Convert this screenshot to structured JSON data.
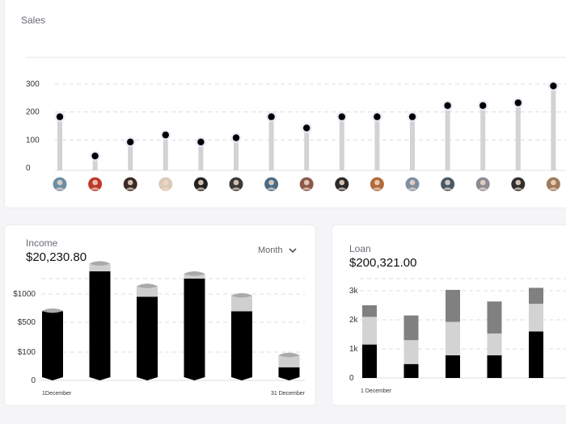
{
  "sales": {
    "title": "Sales"
  },
  "income": {
    "title": "Income",
    "amount": "$20,230.80",
    "period_select": "Month",
    "x_start_label": "1December",
    "x_end_label": "31 December"
  },
  "loan": {
    "title": "Loan",
    "amount": "$200,321.00",
    "x_start_label": "1 December"
  },
  "chart_data": [
    {
      "id": "sales",
      "type": "scatter",
      "title": "Sales",
      "y_ticks": [
        "300",
        "200",
        "100",
        "0"
      ],
      "ylim": [
        0,
        300
      ],
      "grid": true,
      "points": [
        {
          "value": 180,
          "avatar": "avatar-1",
          "color": "#6b8fa6"
        },
        {
          "value": 40,
          "avatar": "avatar-2",
          "color": "#c0392b"
        },
        {
          "value": 90,
          "avatar": "avatar-3",
          "color": "#3b2a26"
        },
        {
          "value": 115,
          "avatar": "avatar-4",
          "color": "#d9cbb8"
        },
        {
          "value": 90,
          "avatar": "avatar-5",
          "color": "#222222"
        },
        {
          "value": 105,
          "avatar": "avatar-6",
          "color": "#3a3a3a"
        },
        {
          "value": 180,
          "avatar": "avatar-7",
          "color": "#4a6b86"
        },
        {
          "value": 140,
          "avatar": "avatar-8",
          "color": "#8a5a4a"
        },
        {
          "value": 180,
          "avatar": "avatar-9",
          "color": "#2a2a2a"
        },
        {
          "value": 180,
          "avatar": "avatar-10",
          "color": "#b06a3a"
        },
        {
          "value": 180,
          "avatar": "avatar-11",
          "color": "#7f8fa0"
        },
        {
          "value": 220,
          "avatar": "avatar-12",
          "color": "#4a5a66"
        },
        {
          "value": 220,
          "avatar": "avatar-13",
          "color": "#8c8c96"
        },
        {
          "value": 230,
          "avatar": "avatar-14",
          "color": "#303030"
        },
        {
          "value": 290,
          "avatar": "avatar-15",
          "color": "#a07a5a"
        }
      ]
    },
    {
      "id": "income",
      "type": "bar",
      "y_ticks": [
        "$1000",
        "$500",
        "$100",
        "0"
      ],
      "ylim": [
        0,
        1500
      ],
      "grid": true,
      "bars": [
        {
          "value": 950,
          "cap": 40
        },
        {
          "value": 1500,
          "cap": 140
        },
        {
          "value": 1150,
          "cap": 180
        },
        {
          "value": 1400,
          "cap": 100
        },
        {
          "value": 950,
          "cap": 250
        },
        {
          "value": 180,
          "cap": 200
        }
      ],
      "colors": {
        "main": "#000000",
        "cap": "#cfcfcf"
      }
    },
    {
      "id": "loan",
      "type": "bar",
      "stacked": true,
      "y_ticks": [
        "3k",
        "2k",
        "1k",
        "0"
      ],
      "ylim": [
        0,
        3000
      ],
      "grid": true,
      "series": [
        {
          "values": [
            1150,
            480,
            780,
            780,
            1600
          ],
          "color": "#000000"
        },
        {
          "values": [
            950,
            820,
            1150,
            750,
            950
          ],
          "color": "#d3d3d3"
        },
        {
          "values": [
            400,
            850,
            1100,
            1100,
            550
          ],
          "color": "#808080"
        }
      ]
    }
  ]
}
